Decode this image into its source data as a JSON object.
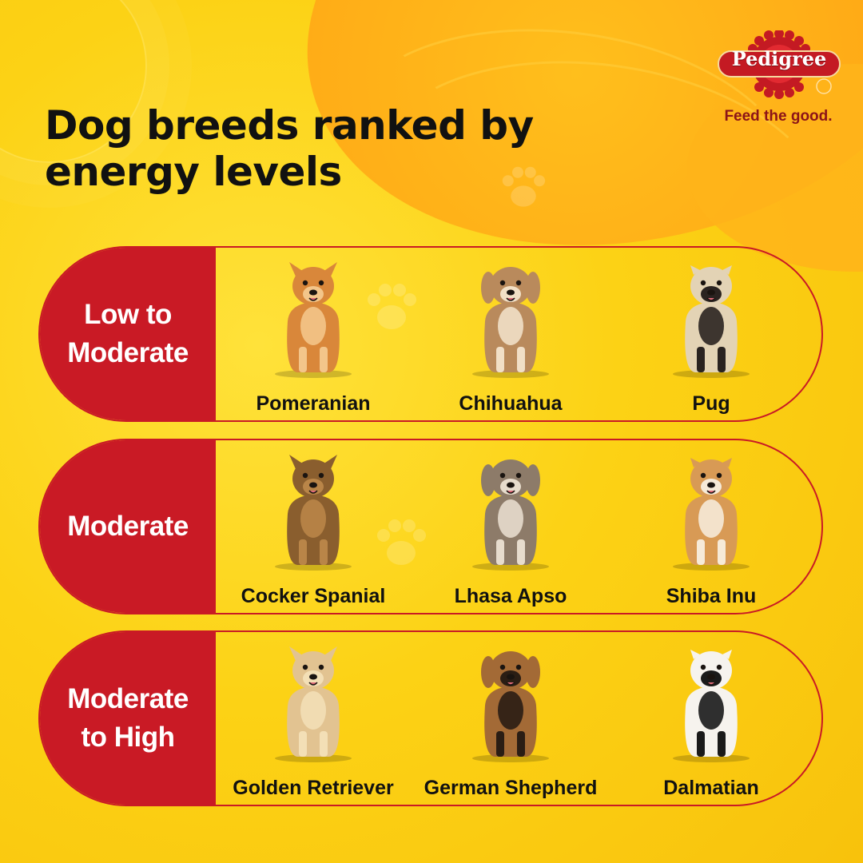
{
  "title": "Dog breeds ranked by energy levels",
  "brand": {
    "logo_text": "Pedigree",
    "tagline": "Feed the good.",
    "colors": {
      "red": "#c91a25",
      "yellow": "#fcd215",
      "orange": "#ffad17"
    }
  },
  "rows": [
    {
      "label": "Low to\nModerate",
      "breeds": [
        {
          "name": "Pomeranian",
          "coat": "#d9873a",
          "coat2": "#f3c58a"
        },
        {
          "name": "Chihuahua",
          "coat": "#b98a5c",
          "coat2": "#f1dfc6"
        },
        {
          "name": "Pug",
          "coat": "#e3d3b5",
          "coat2": "#2a2320"
        }
      ]
    },
    {
      "label": "Moderate",
      "breeds": [
        {
          "name": "Cocker Spanial",
          "coat": "#8a5e2e",
          "coat2": "#b98548"
        },
        {
          "name": "Lhasa Apso",
          "coat": "#8d7b69",
          "coat2": "#e7dccd"
        },
        {
          "name": "Shiba Inu",
          "coat": "#d89a55",
          "coat2": "#f6ead8"
        }
      ]
    },
    {
      "label": "Moderate\nto High",
      "breeds": [
        {
          "name": "Golden Retriever",
          "coat": "#e2c391",
          "coat2": "#f3dfb6"
        },
        {
          "name": "German Shepherd",
          "coat": "#a36a36",
          "coat2": "#2a1d14"
        },
        {
          "name": "Dalmatian",
          "coat": "#f6f3ee",
          "coat2": "#1a1a1a"
        }
      ]
    }
  ]
}
